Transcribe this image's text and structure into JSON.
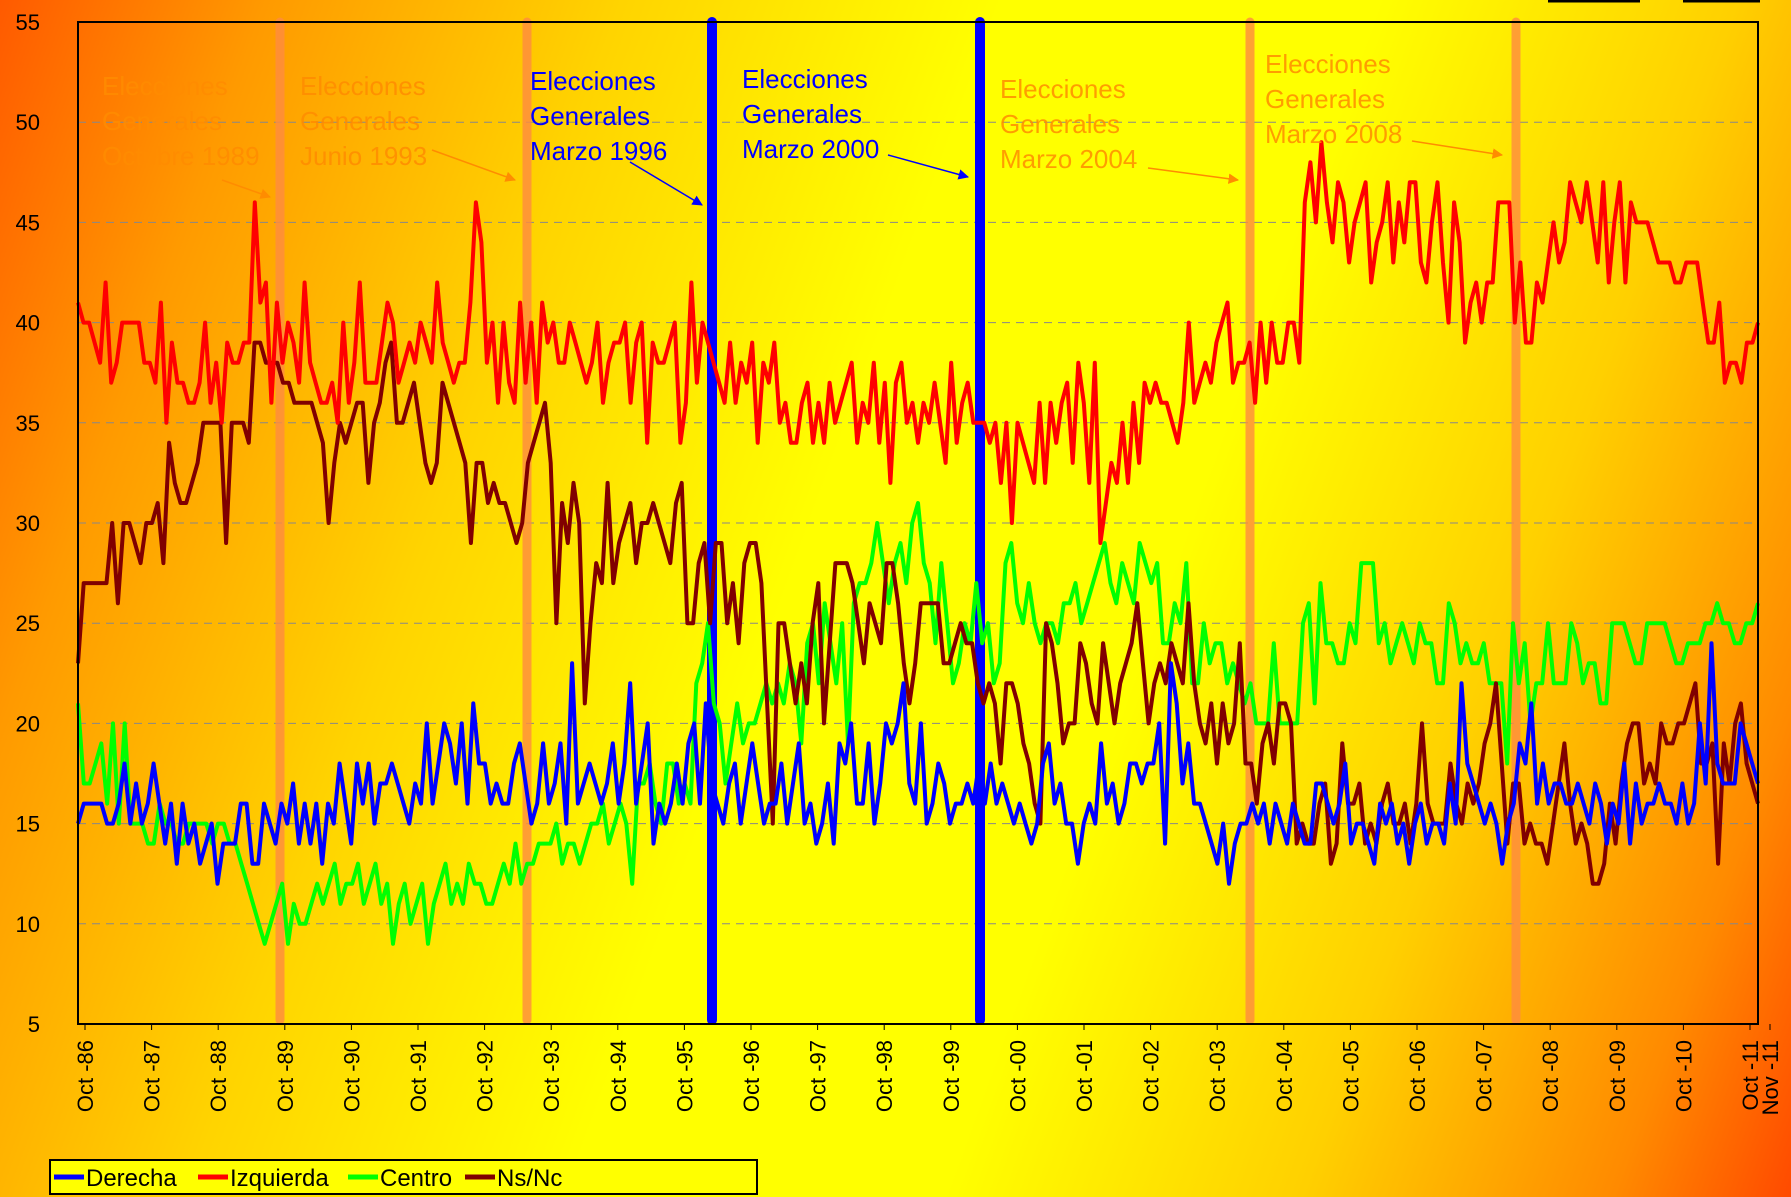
{
  "chart_data": {
    "type": "line",
    "title": "",
    "xlabel": "",
    "ylabel": "",
    "ylim": [
      5,
      55
    ],
    "yticks": [
      5,
      10,
      15,
      20,
      25,
      30,
      35,
      40,
      45,
      50,
      55
    ],
    "x_tick_labels": [
      "Oct -86",
      "Oct -87",
      "Oct -88",
      "Oct -89",
      "Oct -90",
      "Oct -91",
      "Oct -92",
      "Oct -93",
      "Oct -94",
      "Oct -95",
      "Oct -96",
      "Oct -97",
      "Oct -98",
      "Oct -99",
      "Oct -00",
      "Oct -01",
      "Oct -02",
      "Oct -03",
      "Oct -04",
      "Oct -05",
      "Oct -06",
      "Oct -07",
      "Oct -08",
      "Oct -09",
      "Oct -10",
      "Oct -11",
      "Nov -11"
    ],
    "grid": true,
    "legend_position": "bottom-left",
    "series": [
      {
        "name": "Derecha",
        "color": "#0000ff",
        "values": [
          15,
          16,
          16,
          16,
          16,
          15,
          15,
          16,
          18,
          15,
          17,
          15,
          16,
          18,
          16,
          14,
          16,
          13,
          16,
          14,
          15,
          13,
          14,
          15,
          12,
          14,
          14,
          14,
          16,
          16,
          13,
          13,
          16,
          15,
          14,
          16,
          15,
          17,
          14,
          16,
          14,
          16,
          13,
          16,
          15,
          18,
          16,
          14,
          18,
          16,
          18,
          15,
          17,
          17,
          18,
          17,
          16,
          15,
          17,
          16,
          20,
          16,
          18,
          20,
          19,
          17,
          20,
          16,
          21,
          18,
          18,
          16,
          17,
          16,
          16,
          18,
          19,
          17,
          15,
          16,
          19,
          16,
          17,
          19,
          15,
          23,
          16,
          17,
          18,
          17,
          16,
          17,
          19,
          16,
          18,
          22,
          16,
          18,
          20,
          14,
          16,
          15,
          16,
          18,
          16,
          19,
          20,
          16,
          21,
          17,
          16,
          15,
          17,
          18,
          15,
          17,
          19,
          17,
          15,
          16,
          16,
          18,
          15,
          17,
          19,
          15,
          16,
          14,
          15,
          17,
          14,
          19,
          18,
          20,
          16,
          16,
          19,
          15,
          17,
          20,
          19,
          20,
          22,
          17,
          16,
          20,
          15,
          16,
          18,
          17,
          15,
          16,
          16,
          17,
          16,
          18,
          16,
          18,
          16,
          17,
          16,
          15,
          16,
          15,
          14,
          15,
          18,
          19,
          16,
          17,
          15,
          15,
          13,
          15,
          16,
          15,
          19,
          16,
          17,
          15,
          16,
          18,
          18,
          17,
          18,
          18,
          20,
          14,
          23,
          21,
          17,
          19,
          16,
          16,
          15,
          14,
          13,
          15,
          12,
          14,
          15,
          15,
          16,
          15,
          16,
          14,
          16,
          15,
          14,
          16,
          15,
          14,
          14,
          17,
          17,
          16,
          15,
          16,
          18,
          14,
          15,
          15,
          14,
          13,
          16,
          15,
          16,
          14,
          15,
          13,
          15,
          16,
          14,
          15,
          15,
          14,
          17,
          15,
          22,
          18,
          17,
          16,
          15,
          16,
          15,
          13,
          15,
          16,
          19,
          18,
          21,
          16,
          18,
          16,
          17,
          17,
          16,
          16,
          17,
          16,
          15,
          17,
          16,
          14,
          16,
          15,
          18,
          14,
          17,
          15,
          16,
          16,
          17,
          16,
          16,
          15,
          17,
          15,
          16,
          20,
          17,
          24,
          18,
          17,
          17,
          17,
          20,
          19,
          18,
          17
        ]
      },
      {
        "name": "Izquierda",
        "color": "#ff0000",
        "values": [
          41,
          40,
          40,
          39,
          38,
          42,
          37,
          38,
          40,
          40,
          40,
          40,
          38,
          38,
          37,
          41,
          35,
          39,
          37,
          37,
          36,
          36,
          37,
          40,
          36,
          38,
          35,
          39,
          38,
          38,
          39,
          39,
          46,
          41,
          42,
          36,
          41,
          38,
          40,
          39,
          37,
          42,
          38,
          37,
          36,
          36,
          37,
          35,
          40,
          36,
          38,
          42,
          37,
          37,
          37,
          39,
          41,
          40,
          37,
          38,
          39,
          38,
          40,
          39,
          38,
          42,
          39,
          38,
          37,
          38,
          38,
          41,
          46,
          44,
          38,
          40,
          36,
          40,
          37,
          36,
          41,
          37,
          40,
          36,
          41,
          39,
          40,
          38,
          38,
          40,
          39,
          38,
          37,
          38,
          40,
          36,
          38,
          39,
          39,
          40,
          36,
          39,
          40,
          34,
          39,
          38,
          38,
          39,
          40,
          34,
          36,
          42,
          37,
          40,
          39,
          38,
          37,
          36,
          39,
          36,
          38,
          37,
          39,
          34,
          38,
          37,
          39,
          35,
          36,
          34,
          34,
          36,
          37,
          34,
          36,
          34,
          37,
          35,
          36,
          37,
          38,
          34,
          36,
          35,
          38,
          34,
          37,
          32,
          37,
          38,
          35,
          36,
          34,
          36,
          35,
          37,
          35,
          33,
          38,
          34,
          36,
          37,
          35,
          35,
          35,
          34,
          35,
          32,
          35,
          30,
          35,
          34,
          33,
          32,
          36,
          32,
          36,
          34,
          36,
          37,
          33,
          38,
          36,
          32,
          38,
          29,
          31,
          33,
          32,
          35,
          32,
          36,
          33,
          37,
          36,
          37,
          36,
          36,
          35,
          34,
          36,
          40,
          36,
          37,
          38,
          37,
          39,
          40,
          41,
          37,
          38,
          38,
          39,
          36,
          40,
          37,
          40,
          38,
          38,
          40,
          40,
          38,
          46,
          48,
          45,
          49,
          46,
          44,
          47,
          46,
          43,
          45,
          46,
          47,
          42,
          44,
          45,
          47,
          43,
          46,
          44,
          47,
          47,
          43,
          42,
          45,
          47,
          43,
          40,
          46,
          44,
          39,
          41,
          42,
          40,
          42,
          42,
          46,
          46,
          46,
          40,
          43,
          39,
          39,
          42,
          41,
          43,
          45,
          43,
          44,
          47,
          46,
          45,
          47,
          45,
          43,
          47,
          42,
          45,
          47,
          42,
          46,
          45,
          45,
          45,
          44,
          43,
          43,
          43,
          42,
          42,
          43,
          43,
          43,
          41,
          39,
          39,
          41,
          37,
          38,
          38,
          37,
          39,
          39,
          40
        ]
      },
      {
        "name": "Centro",
        "color": "#00ff00",
        "values": [
          21,
          17,
          17,
          18,
          19,
          16,
          20,
          15,
          20,
          15,
          15,
          15,
          14,
          14,
          16,
          15,
          15,
          14,
          14,
          15,
          15,
          15,
          15,
          14,
          15,
          15,
          14,
          14,
          13,
          12,
          11,
          10,
          9,
          10,
          11,
          12,
          9,
          11,
          10,
          10,
          11,
          12,
          11,
          12,
          13,
          11,
          12,
          12,
          13,
          11,
          12,
          13,
          11,
          12,
          9,
          11,
          12,
          10,
          11,
          12,
          9,
          11,
          12,
          13,
          11,
          12,
          11,
          13,
          12,
          12,
          11,
          11,
          12,
          13,
          12,
          14,
          12,
          13,
          13,
          14,
          14,
          14,
          15,
          13,
          14,
          14,
          13,
          14,
          15,
          15,
          16,
          14,
          15,
          16,
          15,
          12,
          17,
          17,
          18,
          16,
          15,
          18,
          18,
          16,
          17,
          16,
          22,
          23,
          25,
          21,
          20,
          17,
          19,
          21,
          19,
          20,
          20,
          21,
          22,
          21,
          22,
          21,
          23,
          22,
          19,
          24,
          25,
          22,
          26,
          24,
          22,
          25,
          19,
          26,
          27,
          27,
          28,
          30,
          28,
          26,
          28,
          29,
          27,
          30,
          31,
          28,
          27,
          24,
          28,
          25,
          22,
          23,
          25,
          24,
          27,
          24,
          25,
          22,
          23,
          28,
          29,
          26,
          25,
          27,
          25,
          24,
          25,
          25,
          24,
          26,
          26,
          27,
          25,
          26,
          27,
          28,
          29,
          27,
          26,
          28,
          27,
          26,
          29,
          28,
          27,
          28,
          24,
          24,
          26,
          25,
          28,
          22,
          22,
          25,
          23,
          24,
          24,
          22,
          23,
          22,
          21,
          22,
          20,
          20,
          20,
          24,
          20,
          20,
          20,
          20,
          25,
          26,
          21,
          27,
          24,
          24,
          23,
          23,
          25,
          24,
          28,
          28,
          28,
          24,
          25,
          23,
          24,
          25,
          24,
          23,
          25,
          24,
          24,
          22,
          22,
          26,
          25,
          23,
          24,
          23,
          23,
          24,
          22,
          22,
          22,
          18,
          25,
          22,
          24,
          20,
          22,
          22,
          25,
          22,
          22,
          22,
          25,
          24,
          22,
          23,
          23,
          21,
          21,
          25,
          25,
          25,
          24,
          23,
          23,
          25,
          25,
          25,
          25,
          24,
          23,
          23,
          24,
          24,
          24,
          25,
          25,
          26,
          25,
          25,
          24,
          24,
          25,
          25,
          26
        ]
      },
      {
        "name": "Ns/Nc",
        "color": "#800000",
        "values": [
          23,
          27,
          27,
          27,
          27,
          27,
          30,
          26,
          30,
          30,
          29,
          28,
          30,
          30,
          31,
          28,
          34,
          32,
          31,
          31,
          32,
          33,
          35,
          35,
          35,
          35,
          29,
          35,
          35,
          35,
          34,
          39,
          39,
          38,
          38,
          38,
          37,
          37,
          36,
          36,
          36,
          36,
          35,
          34,
          30,
          33,
          35,
          34,
          35,
          36,
          36,
          32,
          35,
          36,
          38,
          39,
          35,
          35,
          36,
          37,
          35,
          33,
          32,
          33,
          37,
          36,
          35,
          34,
          33,
          29,
          33,
          33,
          31,
          32,
          31,
          31,
          30,
          29,
          30,
          33,
          34,
          35,
          36,
          33,
          25,
          31,
          29,
          32,
          30,
          21,
          25,
          28,
          27,
          32,
          27,
          29,
          30,
          31,
          28,
          30,
          30,
          31,
          30,
          29,
          28,
          31,
          32,
          25,
          25,
          28,
          29,
          25,
          29,
          29,
          25,
          27,
          24,
          28,
          29,
          29,
          27,
          21,
          15,
          25,
          25,
          23,
          21,
          23,
          21,
          25,
          27,
          20,
          24,
          28,
          28,
          28,
          27,
          25,
          23,
          26,
          25,
          24,
          28,
          28,
          26,
          23,
          21,
          23,
          26,
          26,
          26,
          26,
          23,
          23,
          24,
          25,
          24,
          24,
          22,
          21,
          22,
          21,
          18,
          22,
          22,
          21,
          19,
          18,
          16,
          15,
          25,
          24,
          22,
          19,
          20,
          20,
          24,
          23,
          21,
          20,
          24,
          22,
          20,
          22,
          23,
          24,
          26,
          23,
          20,
          22,
          23,
          22,
          24,
          23,
          22,
          26,
          22,
          20,
          19,
          21,
          18,
          21,
          19,
          20,
          24,
          18,
          18,
          16,
          19,
          20,
          18,
          21,
          21,
          20,
          14,
          15,
          14,
          14,
          16,
          17,
          13,
          14,
          19,
          16,
          16,
          17,
          14,
          15,
          14,
          16,
          17,
          15,
          15,
          16,
          14,
          16,
          20,
          16,
          15,
          15,
          15,
          18,
          16,
          15,
          17,
          16,
          17,
          19,
          20,
          22,
          18,
          14,
          17,
          17,
          14,
          15,
          14,
          14,
          13,
          15,
          17,
          19,
          16,
          14,
          15,
          14,
          12,
          12,
          13,
          16,
          14,
          17,
          19,
          20,
          20,
          17,
          18,
          17,
          20,
          19,
          19,
          20,
          20,
          21,
          22,
          18,
          18,
          19,
          13,
          19,
          17,
          20,
          21,
          18,
          17,
          16
        ]
      }
    ],
    "annotations": [
      {
        "lines": [
          "Elecciones",
          "Generales",
          "Octubre 1989"
        ],
        "color": "#ff8c00"
      },
      {
        "lines": [
          "Elecciones",
          "Generales",
          "Junio 1993"
        ],
        "color": "#ff8c00"
      },
      {
        "lines": [
          "Elecciones",
          "Generales",
          "Marzo 1996"
        ],
        "color": "#0000ff"
      },
      {
        "lines": [
          "Elecciones",
          "Generales",
          "Marzo 2000"
        ],
        "color": "#0000ff"
      },
      {
        "lines": [
          "Elecciones",
          "Generales",
          "Marzo 2004"
        ],
        "color": "#ff8c00"
      },
      {
        "lines": [
          "Elecciones",
          "Generales",
          "Marzo 2008"
        ],
        "color": "#ff8c00"
      }
    ],
    "election_lines": [
      {
        "label": "Octubre 1989",
        "color": "#ff8c40"
      },
      {
        "label": "Junio 1993",
        "color": "#ff8c40"
      },
      {
        "label": "Marzo 1996",
        "color": "#0000ff"
      },
      {
        "label": "Marzo 2000",
        "color": "#0000ff"
      },
      {
        "label": "Marzo 2004",
        "color": "#ff8c40"
      },
      {
        "label": "Marzo 2008",
        "color": "#ff8c40"
      }
    ]
  }
}
